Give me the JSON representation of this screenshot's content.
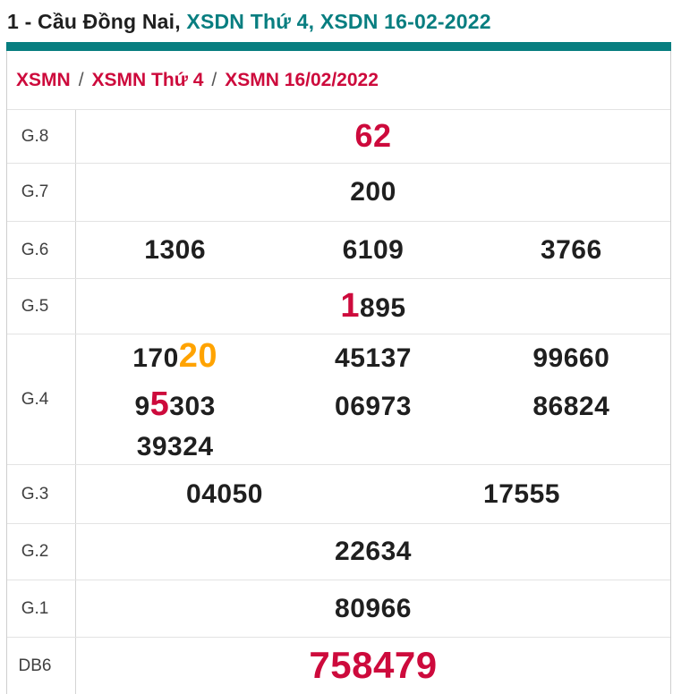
{
  "title": {
    "segments": [
      {
        "text": "1 - Cầu Đồng Nai, ",
        "color": "dark"
      },
      {
        "text": "XSDN Thứ 4, XSDN 16-02-2022",
        "color": "teal"
      }
    ]
  },
  "breadcrumb": {
    "items": [
      "XSMN",
      "XSMN Thứ 4",
      "XSMN 16/02/2022"
    ],
    "separator": "/"
  },
  "colors": {
    "teal": "#087e80",
    "crimson": "#cd0a3c",
    "orange": "#ffa300",
    "dark": "#1f1f1f"
  },
  "table": {
    "rows": [
      {
        "key": "g8",
        "label": "G.8",
        "size": "xl",
        "lines": [
          [
            [
              {
                "t": "62",
                "c": "crimson"
              }
            ]
          ]
        ]
      },
      {
        "key": "g7",
        "label": "G.7",
        "lines": [
          [
            [
              {
                "t": "200"
              }
            ]
          ]
        ]
      },
      {
        "key": "g6",
        "label": "G.6",
        "lines": [
          [
            [
              {
                "t": "1306"
              }
            ],
            [
              {
                "t": "6109"
              }
            ],
            [
              {
                "t": "3766"
              }
            ]
          ]
        ]
      },
      {
        "key": "g5",
        "label": "G.5",
        "lines": [
          [
            [
              {
                "t": "1",
                "c": "crimson",
                "big": true
              },
              {
                "t": "895"
              }
            ]
          ]
        ]
      },
      {
        "key": "g4",
        "label": "G.4",
        "lines": [
          [
            [
              {
                "t": "170"
              },
              {
                "t": "20",
                "c": "orange",
                "big": true
              }
            ],
            [
              {
                "t": "45137"
              }
            ],
            [
              {
                "t": "99660"
              }
            ]
          ],
          [
            [
              {
                "t": "9"
              },
              {
                "t": "5",
                "c": "crimson",
                "big": true
              },
              {
                "t": "303"
              }
            ],
            [
              {
                "t": "06973"
              }
            ],
            [
              {
                "t": "86824"
              }
            ]
          ],
          [
            [
              {
                "t": "39324"
              }
            ],
            [],
            []
          ]
        ]
      },
      {
        "key": "g3",
        "label": "G.3",
        "lines": [
          [
            [
              {
                "t": "04050"
              }
            ],
            [
              {
                "t": "17555"
              }
            ]
          ]
        ]
      },
      {
        "key": "g2",
        "label": "G.2",
        "lines": [
          [
            [
              {
                "t": "22634"
              }
            ]
          ]
        ]
      },
      {
        "key": "g1",
        "label": "G.1",
        "lines": [
          [
            [
              {
                "t": "80966"
              }
            ]
          ]
        ]
      },
      {
        "key": "db6",
        "label": "DB6",
        "size": "xxl",
        "lines": [
          [
            [
              {
                "t": "758479",
                "c": "crimson"
              }
            ]
          ]
        ]
      }
    ]
  }
}
